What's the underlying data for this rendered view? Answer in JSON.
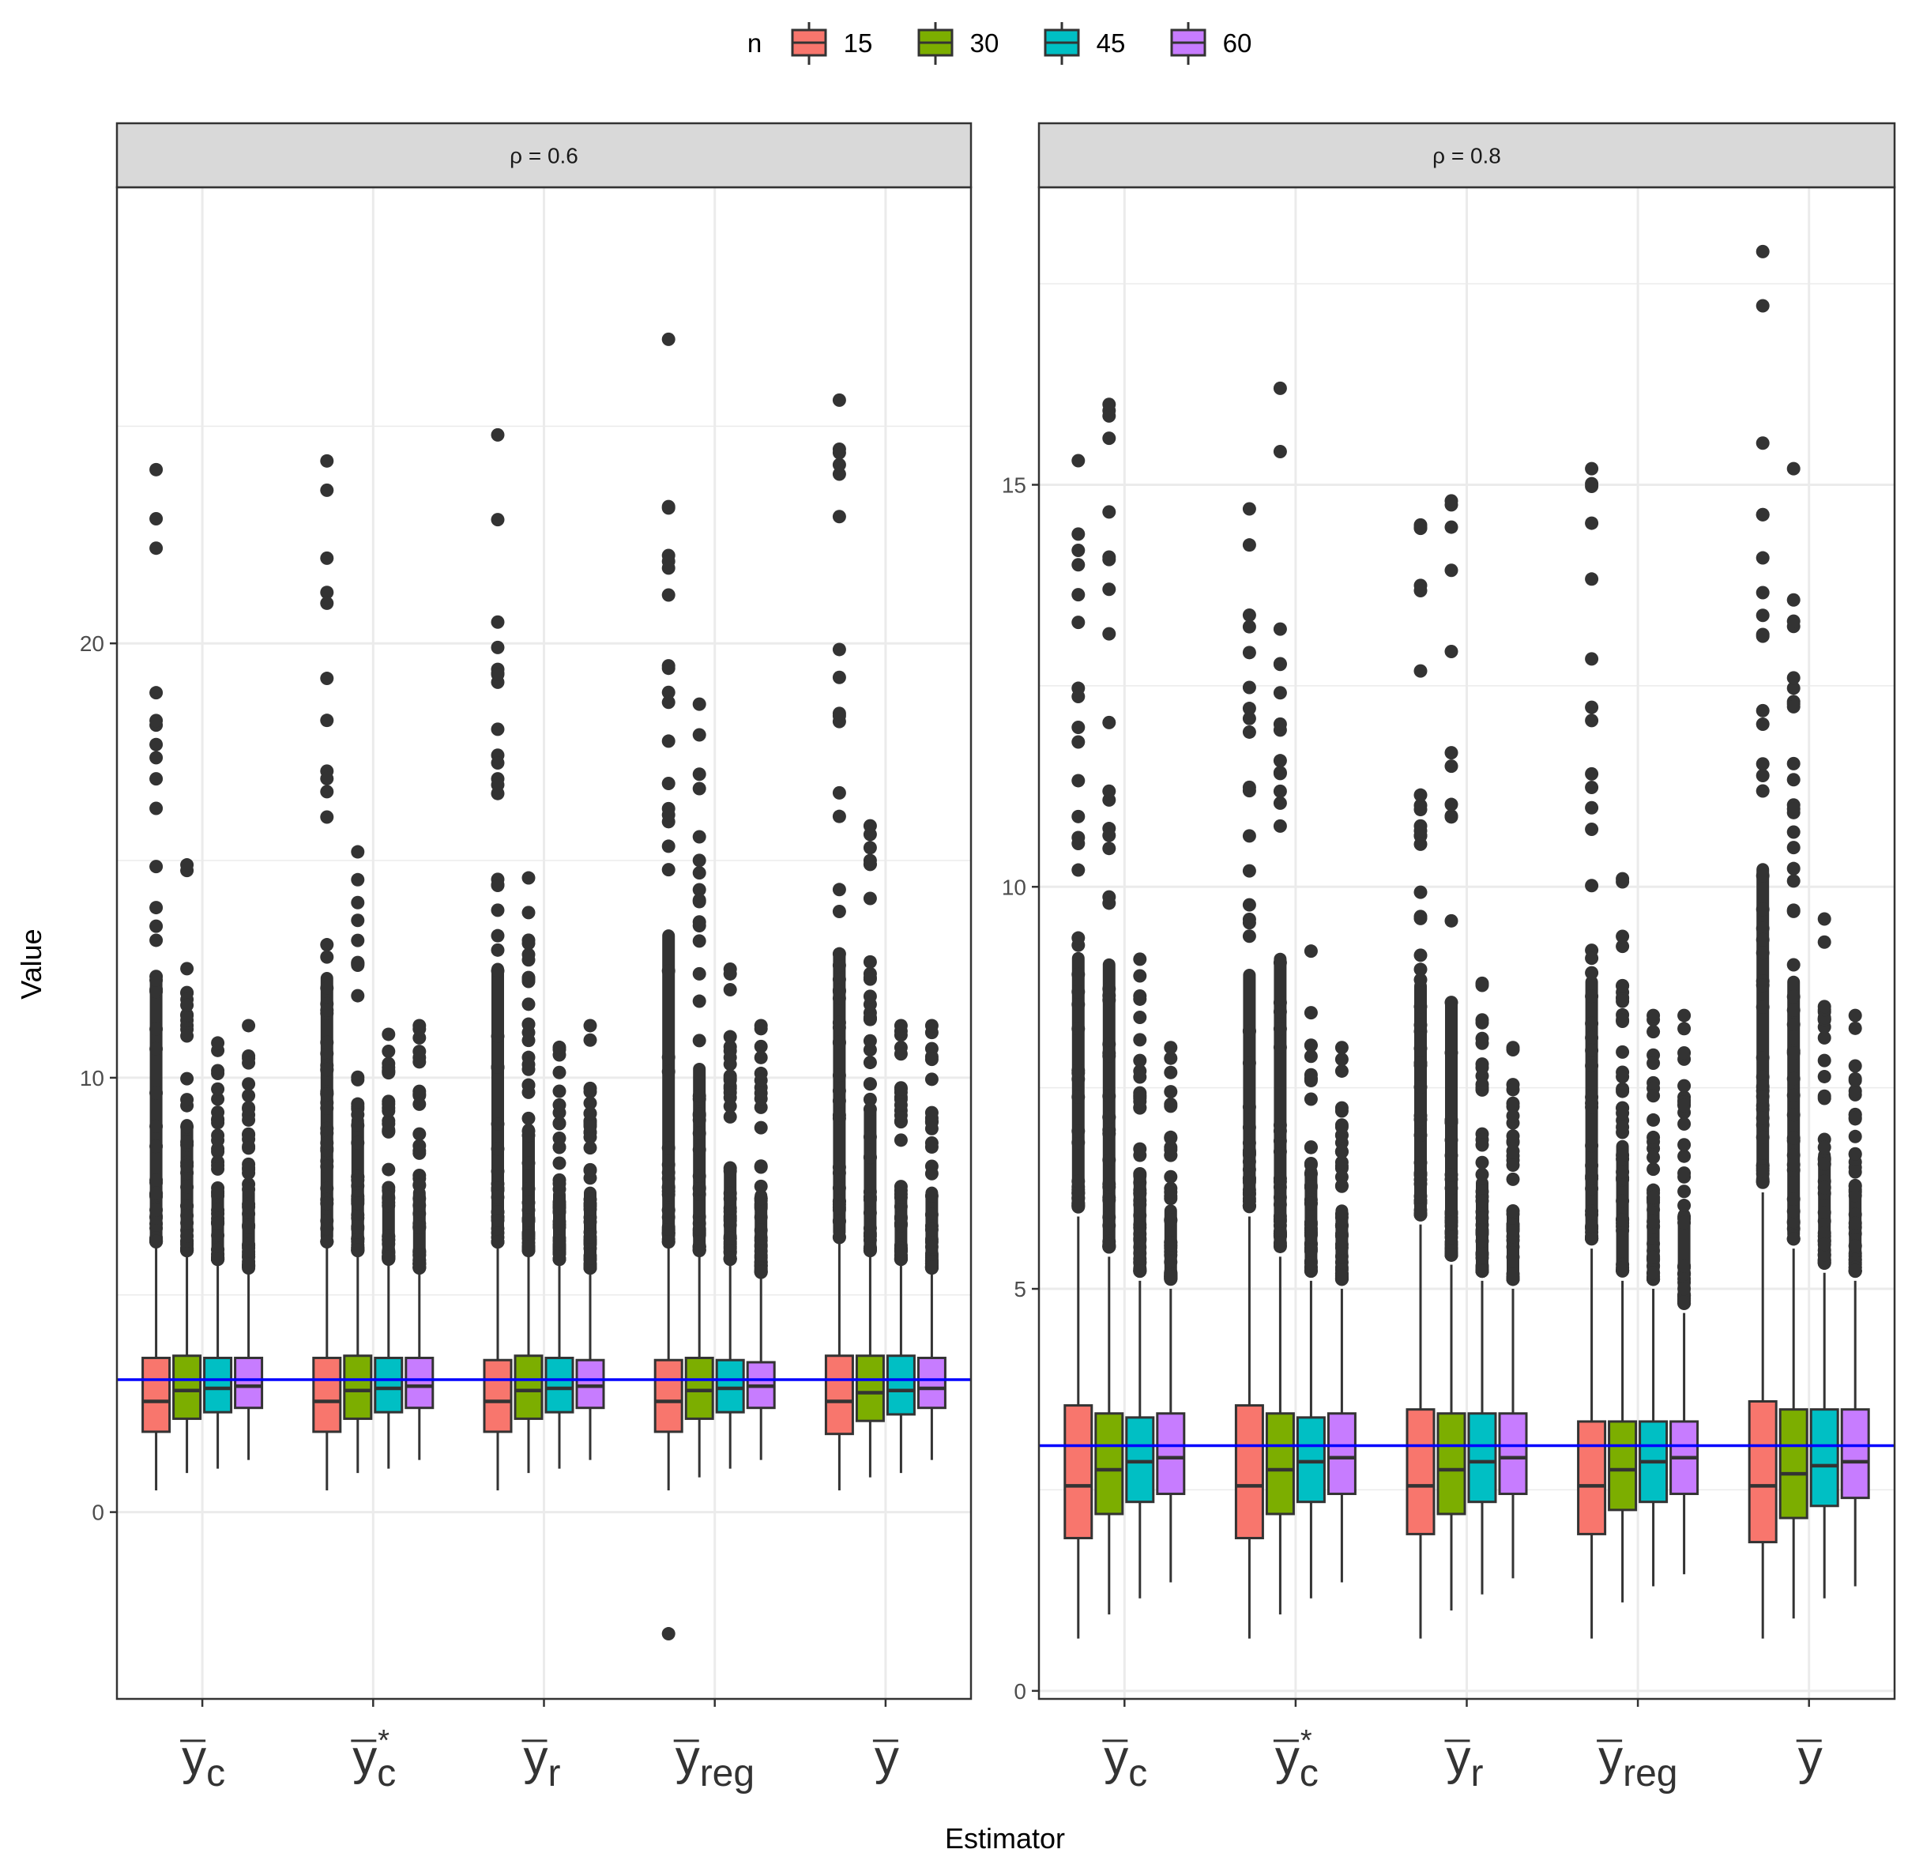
{
  "chart_data": {
    "type": "boxplot",
    "xlabel": "Estimator",
    "ylabel": "Value",
    "legend": {
      "title": "n",
      "position": "top",
      "entries": [
        {
          "label": "15",
          "color": "#F8766D"
        },
        {
          "label": "30",
          "color": "#7CAE00"
        },
        {
          "label": "45",
          "color": "#00BFC4"
        },
        {
          "label": "60",
          "color": "#C77CFF"
        }
      ]
    },
    "categories": [
      {
        "base": "y",
        "sub": "c",
        "sup": ""
      },
      {
        "base": "y",
        "sub": "c",
        "sup": "*"
      },
      {
        "base": "y",
        "sub": "r",
        "sup": ""
      },
      {
        "base": "y",
        "sub": "reg",
        "sup": ""
      },
      {
        "base": "y",
        "sub": "",
        "sup": ""
      }
    ],
    "panels": [
      {
        "strip": "ρ = 0.6",
        "ylim": [
          -4.3,
          30.5
        ],
        "yticks": [
          0,
          10,
          20
        ],
        "ytick_labels": [
          "0",
          "10",
          "20"
        ],
        "reference_line": 3.05,
        "boxes": [
          [
            {
              "min": 0.5,
              "q1": 1.85,
              "median": 2.55,
              "q3": 3.55,
              "max": 6.1,
              "outlier_max": 24.0
            },
            {
              "min": 0.9,
              "q1": 2.15,
              "median": 2.8,
              "q3": 3.6,
              "max": 5.9,
              "outlier_max": 14.9
            },
            {
              "min": 1.0,
              "q1": 2.3,
              "median": 2.85,
              "q3": 3.55,
              "max": 5.7,
              "outlier_max": 10.8
            },
            {
              "min": 1.2,
              "q1": 2.4,
              "median": 2.9,
              "q3": 3.55,
              "max": 5.5,
              "outlier_max": 11.2
            }
          ],
          [
            {
              "min": 0.5,
              "q1": 1.85,
              "median": 2.55,
              "q3": 3.55,
              "max": 6.1,
              "outlier_max": 24.2
            },
            {
              "min": 0.9,
              "q1": 2.15,
              "median": 2.8,
              "q3": 3.6,
              "max": 5.9,
              "outlier_max": 15.2
            },
            {
              "min": 1.0,
              "q1": 2.3,
              "median": 2.85,
              "q3": 3.55,
              "max": 5.7,
              "outlier_max": 11.0
            },
            {
              "min": 1.2,
              "q1": 2.4,
              "median": 2.9,
              "q3": 3.55,
              "max": 5.5,
              "outlier_max": 11.2
            }
          ],
          [
            {
              "min": 0.5,
              "q1": 1.85,
              "median": 2.55,
              "q3": 3.5,
              "max": 6.1,
              "outlier_max": 24.8
            },
            {
              "min": 0.9,
              "q1": 2.15,
              "median": 2.8,
              "q3": 3.6,
              "max": 5.9,
              "outlier_max": 14.6
            },
            {
              "min": 1.0,
              "q1": 2.3,
              "median": 2.85,
              "q3": 3.55,
              "max": 5.7,
              "outlier_max": 10.7
            },
            {
              "min": 1.2,
              "q1": 2.4,
              "median": 2.9,
              "q3": 3.5,
              "max": 5.5,
              "outlier_max": 11.2
            }
          ],
          [
            {
              "min": 0.5,
              "q1": 1.85,
              "median": 2.55,
              "q3": 3.5,
              "max": 6.1,
              "outlier_max": 27.0,
              "outlier_min": -2.8
            },
            {
              "min": 0.8,
              "q1": 2.15,
              "median": 2.8,
              "q3": 3.55,
              "max": 5.9,
              "outlier_max": 18.6
            },
            {
              "min": 1.0,
              "q1": 2.3,
              "median": 2.85,
              "q3": 3.5,
              "max": 5.7,
              "outlier_max": 12.5
            },
            {
              "min": 1.2,
              "q1": 2.4,
              "median": 2.9,
              "q3": 3.45,
              "max": 5.4,
              "outlier_max": 11.2
            }
          ],
          [
            {
              "min": 0.5,
              "q1": 1.8,
              "median": 2.55,
              "q3": 3.6,
              "max": 6.2,
              "outlier_max": 25.6
            },
            {
              "min": 0.8,
              "q1": 2.1,
              "median": 2.75,
              "q3": 3.6,
              "max": 5.9,
              "outlier_max": 15.8
            },
            {
              "min": 0.9,
              "q1": 2.25,
              "median": 2.8,
              "q3": 3.6,
              "max": 5.7,
              "outlier_max": 11.2
            },
            {
              "min": 1.2,
              "q1": 2.4,
              "median": 2.85,
              "q3": 3.55,
              "max": 5.5,
              "outlier_max": 11.2
            }
          ]
        ]
      },
      {
        "strip": "ρ = 0.8",
        "ylim": [
          -0.1,
          18.7
        ],
        "yticks": [
          0,
          5,
          10,
          15
        ],
        "ytick_labels": [
          "0",
          "5",
          "10",
          "15"
        ],
        "reference_line": 3.05,
        "boxes": [
          [
            {
              "min": 0.65,
              "q1": 1.9,
              "median": 2.55,
              "q3": 3.55,
              "max": 5.9,
              "outlier_max": 15.3
            },
            {
              "min": 0.95,
              "q1": 2.2,
              "median": 2.75,
              "q3": 3.45,
              "max": 5.4,
              "outlier_max": 16.0
            },
            {
              "min": 1.15,
              "q1": 2.35,
              "median": 2.85,
              "q3": 3.4,
              "max": 5.1,
              "outlier_max": 9.1
            },
            {
              "min": 1.35,
              "q1": 2.45,
              "median": 2.9,
              "q3": 3.45,
              "max": 5.0,
              "outlier_max": 8.0
            }
          ],
          [
            {
              "min": 0.65,
              "q1": 1.9,
              "median": 2.55,
              "q3": 3.55,
              "max": 5.9,
              "outlier_max": 14.7
            },
            {
              "min": 0.95,
              "q1": 2.2,
              "median": 2.75,
              "q3": 3.45,
              "max": 5.4,
              "outlier_max": 16.2
            },
            {
              "min": 1.15,
              "q1": 2.35,
              "median": 2.85,
              "q3": 3.4,
              "max": 5.1,
              "outlier_max": 9.2
            },
            {
              "min": 1.35,
              "q1": 2.45,
              "median": 2.9,
              "q3": 3.45,
              "max": 5.0,
              "outlier_max": 8.0
            }
          ],
          [
            {
              "min": 0.65,
              "q1": 1.95,
              "median": 2.55,
              "q3": 3.5,
              "max": 5.8,
              "outlier_max": 14.5
            },
            {
              "min": 1.0,
              "q1": 2.2,
              "median": 2.75,
              "q3": 3.45,
              "max": 5.3,
              "outlier_max": 14.8
            },
            {
              "min": 1.2,
              "q1": 2.35,
              "median": 2.85,
              "q3": 3.45,
              "max": 5.1,
              "outlier_max": 8.8
            },
            {
              "min": 1.4,
              "q1": 2.45,
              "median": 2.9,
              "q3": 3.45,
              "max": 5.0,
              "outlier_max": 8.0
            }
          ],
          [
            {
              "min": 0.65,
              "q1": 1.95,
              "median": 2.55,
              "q3": 3.35,
              "max": 5.5,
              "outlier_max": 15.2
            },
            {
              "min": 1.1,
              "q1": 2.25,
              "median": 2.75,
              "q3": 3.35,
              "max": 5.1,
              "outlier_max": 10.1
            },
            {
              "min": 1.3,
              "q1": 2.35,
              "median": 2.85,
              "q3": 3.35,
              "max": 5.0,
              "outlier_max": 8.4
            },
            {
              "min": 1.45,
              "q1": 2.45,
              "median": 2.9,
              "q3": 3.35,
              "max": 4.7,
              "outlier_max": 8.4
            }
          ],
          [
            {
              "min": 0.65,
              "q1": 1.85,
              "median": 2.55,
              "q3": 3.6,
              "max": 6.2,
              "outlier_max": 17.9
            },
            {
              "min": 0.9,
              "q1": 2.15,
              "median": 2.7,
              "q3": 3.5,
              "max": 5.5,
              "outlier_max": 15.2
            },
            {
              "min": 1.15,
              "q1": 2.3,
              "median": 2.8,
              "q3": 3.5,
              "max": 5.2,
              "outlier_max": 9.6
            },
            {
              "min": 1.3,
              "q1": 2.4,
              "median": 2.85,
              "q3": 3.5,
              "max": 5.1,
              "outlier_max": 8.4
            }
          ]
        ]
      }
    ],
    "colors": {
      "reference_line": "#0000FF",
      "outline": "#333333",
      "grid": "#EBEBEB",
      "strip_bg": "#D9D9D9"
    }
  }
}
